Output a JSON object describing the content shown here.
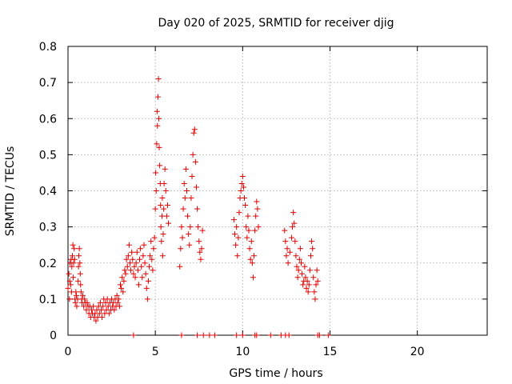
{
  "chart_data": {
    "type": "scatter",
    "title": "Day 020 of 2025, SRMTID for receiver djig",
    "xlabel": "GPS time / hours",
    "ylabel": "SRMTID / TECUs",
    "xlim": [
      0,
      24
    ],
    "ylim": [
      0,
      0.8
    ],
    "x_ticks": [
      0,
      5,
      10,
      15,
      20
    ],
    "x_tick_labels": [
      "0",
      "5",
      "10",
      "15",
      "20"
    ],
    "y_ticks": [
      0,
      0.1,
      0.2,
      0.3,
      0.4,
      0.5,
      0.6,
      0.7,
      0.8
    ],
    "y_tick_labels": [
      "0",
      "0.1",
      "0.2",
      "0.3",
      "0.4",
      "0.5",
      "0.6",
      "0.7",
      "0.8"
    ],
    "grid": true,
    "marker": "+",
    "colors": {
      "series": "#e00000",
      "axis": "#000000",
      "grid": "#a0a0a0"
    },
    "series": [
      {
        "name": "SRMTID",
        "points": [
          [
            0.0,
            0.13
          ],
          [
            0.05,
            0.17
          ],
          [
            0.08,
            0.1
          ],
          [
            0.1,
            0.15
          ],
          [
            0.12,
            0.2
          ],
          [
            0.15,
            0.14
          ],
          [
            0.18,
            0.21
          ],
          [
            0.2,
            0.12
          ],
          [
            0.22,
            0.19
          ],
          [
            0.25,
            0.22
          ],
          [
            0.28,
            0.25
          ],
          [
            0.3,
            0.16
          ],
          [
            0.32,
            0.2
          ],
          [
            0.35,
            0.24
          ],
          [
            0.38,
            0.21
          ],
          [
            0.4,
            0.1
          ],
          [
            0.42,
            0.09
          ],
          [
            0.45,
            0.12
          ],
          [
            0.48,
            0.11
          ],
          [
            0.5,
            0.08
          ],
          [
            0.55,
            0.1
          ],
          [
            0.58,
            0.15
          ],
          [
            0.6,
            0.19
          ],
          [
            0.62,
            0.22
          ],
          [
            0.65,
            0.24
          ],
          [
            0.68,
            0.2
          ],
          [
            0.7,
            0.17
          ],
          [
            0.72,
            0.14
          ],
          [
            0.75,
            0.12
          ],
          [
            0.78,
            0.1
          ],
          [
            0.8,
            0.09
          ],
          [
            0.85,
            0.11
          ],
          [
            0.9,
            0.08
          ],
          [
            0.95,
            0.1
          ],
          [
            1.0,
            0.09
          ],
          [
            1.05,
            0.07
          ],
          [
            1.1,
            0.09
          ],
          [
            1.15,
            0.08
          ],
          [
            1.2,
            0.06
          ],
          [
            1.25,
            0.08
          ],
          [
            1.3,
            0.05
          ],
          [
            1.35,
            0.07
          ],
          [
            1.4,
            0.06
          ],
          [
            1.45,
            0.08
          ],
          [
            1.5,
            0.05
          ],
          [
            1.55,
            0.06
          ],
          [
            1.6,
            0.04
          ],
          [
            1.65,
            0.07
          ],
          [
            1.7,
            0.05
          ],
          [
            1.75,
            0.08
          ],
          [
            1.8,
            0.06
          ],
          [
            1.85,
            0.09
          ],
          [
            1.9,
            0.07
          ],
          [
            1.95,
            0.05
          ],
          [
            2.0,
            0.08
          ],
          [
            2.05,
            0.1
          ],
          [
            2.1,
            0.06
          ],
          [
            2.15,
            0.09
          ],
          [
            2.2,
            0.07
          ],
          [
            2.25,
            0.1
          ],
          [
            2.3,
            0.08
          ],
          [
            2.35,
            0.06
          ],
          [
            2.4,
            0.09
          ],
          [
            2.45,
            0.07
          ],
          [
            2.5,
            0.1
          ],
          [
            2.55,
            0.08
          ],
          [
            2.6,
            0.09
          ],
          [
            2.65,
            0.07
          ],
          [
            2.7,
            0.1
          ],
          [
            2.75,
            0.08
          ],
          [
            2.8,
            0.11
          ],
          [
            2.85,
            0.09
          ],
          [
            2.9,
            0.1
          ],
          [
            2.95,
            0.08
          ],
          [
            3.0,
            0.14
          ],
          [
            3.05,
            0.13
          ],
          [
            3.1,
            0.16
          ],
          [
            3.15,
            0.12
          ],
          [
            3.2,
            0.15
          ],
          [
            3.25,
            0.18
          ],
          [
            3.3,
            0.17
          ],
          [
            3.35,
            0.21
          ],
          [
            3.4,
            0.19
          ],
          [
            3.45,
            0.22
          ],
          [
            3.5,
            0.25
          ],
          [
            3.55,
            0.2
          ],
          [
            3.6,
            0.18
          ],
          [
            3.65,
            0.23
          ],
          [
            3.7,
            0.21
          ],
          [
            3.75,
            0.17
          ],
          [
            3.8,
            0.19
          ],
          [
            3.85,
            0.16
          ],
          [
            3.9,
            0.2
          ],
          [
            3.95,
            0.23
          ],
          [
            4.0,
            0.18
          ],
          [
            4.05,
            0.14
          ],
          [
            4.1,
            0.21
          ],
          [
            4.15,
            0.24
          ],
          [
            4.2,
            0.19
          ],
          [
            4.25,
            0.16
          ],
          [
            4.3,
            0.22
          ],
          [
            4.35,
            0.25
          ],
          [
            4.4,
            0.2
          ],
          [
            4.45,
            0.17
          ],
          [
            4.5,
            0.13
          ],
          [
            4.55,
            0.1
          ],
          [
            4.6,
            0.15
          ],
          [
            4.65,
            0.19
          ],
          [
            4.7,
            0.22
          ],
          [
            4.75,
            0.26
          ],
          [
            4.8,
            0.21
          ],
          [
            4.85,
            0.18
          ],
          [
            4.9,
            0.24
          ],
          [
            4.95,
            0.27
          ],
          [
            5.0,
            0.35
          ],
          [
            5.02,
            0.45
          ],
          [
            5.05,
            0.4
          ],
          [
            5.08,
            0.53
          ],
          [
            5.1,
            0.62
          ],
          [
            5.12,
            0.58
          ],
          [
            5.15,
            0.66
          ],
          [
            5.18,
            0.71
          ],
          [
            5.2,
            0.6
          ],
          [
            5.22,
            0.52
          ],
          [
            5.25,
            0.47
          ],
          [
            5.28,
            0.42
          ],
          [
            5.3,
            0.36
          ],
          [
            5.32,
            0.3
          ],
          [
            5.35,
            0.26
          ],
          [
            5.38,
            0.33
          ],
          [
            5.4,
            0.38
          ],
          [
            5.42,
            0.22
          ],
          [
            5.45,
            0.28
          ],
          [
            5.48,
            0.35
          ],
          [
            5.5,
            0.42
          ],
          [
            5.55,
            0.46
          ],
          [
            5.6,
            0.4
          ],
          [
            5.65,
            0.33
          ],
          [
            5.7,
            0.36
          ],
          [
            5.75,
            0.31
          ],
          [
            6.4,
            0.19
          ],
          [
            6.45,
            0.24
          ],
          [
            6.5,
            0.3
          ],
          [
            6.55,
            0.27
          ],
          [
            6.6,
            0.35
          ],
          [
            6.65,
            0.42
          ],
          [
            6.7,
            0.38
          ],
          [
            6.75,
            0.46
          ],
          [
            6.8,
            0.4
          ],
          [
            6.85,
            0.33
          ],
          [
            6.9,
            0.28
          ],
          [
            6.95,
            0.25
          ],
          [
            7.0,
            0.3
          ],
          [
            7.05,
            0.38
          ],
          [
            7.1,
            0.44
          ],
          [
            7.15,
            0.5
          ],
          [
            7.2,
            0.56
          ],
          [
            7.25,
            0.57
          ],
          [
            7.3,
            0.48
          ],
          [
            7.35,
            0.41
          ],
          [
            7.4,
            0.35
          ],
          [
            7.45,
            0.3
          ],
          [
            7.5,
            0.26
          ],
          [
            7.55,
            0.23
          ],
          [
            7.6,
            0.21
          ],
          [
            7.65,
            0.24
          ],
          [
            7.7,
            0.29
          ],
          [
            9.5,
            0.32
          ],
          [
            9.55,
            0.28
          ],
          [
            9.6,
            0.25
          ],
          [
            9.65,
            0.3
          ],
          [
            9.7,
            0.22
          ],
          [
            9.75,
            0.27
          ],
          [
            9.8,
            0.34
          ],
          [
            9.85,
            0.38
          ],
          [
            9.9,
            0.4
          ],
          [
            9.95,
            0.42
          ],
          [
            10.0,
            0.44
          ],
          [
            10.05,
            0.41
          ],
          [
            10.1,
            0.38
          ],
          [
            10.15,
            0.36
          ],
          [
            10.2,
            0.3
          ],
          [
            10.25,
            0.27
          ],
          [
            10.3,
            0.33
          ],
          [
            10.35,
            0.29
          ],
          [
            10.4,
            0.24
          ],
          [
            10.45,
            0.21
          ],
          [
            10.5,
            0.26
          ],
          [
            10.55,
            0.2
          ],
          [
            10.6,
            0.16
          ],
          [
            10.65,
            0.22
          ],
          [
            10.7,
            0.29
          ],
          [
            10.75,
            0.33
          ],
          [
            10.8,
            0.37
          ],
          [
            10.85,
            0.35
          ],
          [
            10.9,
            0.3
          ],
          [
            12.4,
            0.29
          ],
          [
            12.45,
            0.26
          ],
          [
            12.5,
            0.22
          ],
          [
            12.55,
            0.24
          ],
          [
            12.6,
            0.2
          ],
          [
            12.7,
            0.23
          ],
          [
            12.8,
            0.27
          ],
          [
            12.85,
            0.3
          ],
          [
            12.9,
            0.34
          ],
          [
            12.95,
            0.31
          ],
          [
            13.0,
            0.26
          ],
          [
            13.05,
            0.22
          ],
          [
            13.1,
            0.19
          ],
          [
            13.15,
            0.16
          ],
          [
            13.2,
            0.18
          ],
          [
            13.25,
            0.21
          ],
          [
            13.3,
            0.24
          ],
          [
            13.35,
            0.2
          ],
          [
            13.4,
            0.17
          ],
          [
            13.45,
            0.14
          ],
          [
            13.5,
            0.15
          ],
          [
            13.55,
            0.19
          ],
          [
            13.6,
            0.16
          ],
          [
            13.65,
            0.13
          ],
          [
            13.7,
            0.15
          ],
          [
            13.75,
            0.12
          ],
          [
            13.8,
            0.14
          ],
          [
            13.85,
            0.18
          ],
          [
            13.9,
            0.22
          ],
          [
            13.95,
            0.26
          ],
          [
            14.0,
            0.24
          ],
          [
            14.05,
            0.16
          ],
          [
            14.1,
            0.12
          ],
          [
            14.15,
            0.1
          ],
          [
            14.2,
            0.14
          ],
          [
            14.25,
            0.18
          ],
          [
            14.3,
            0.15
          ],
          [
            3.75,
            0.0
          ],
          [
            6.5,
            0.0
          ],
          [
            7.4,
            0.0
          ],
          [
            7.75,
            0.0
          ],
          [
            8.1,
            0.0
          ],
          [
            8.4,
            0.0
          ],
          [
            9.65,
            0.0
          ],
          [
            10.0,
            0.0
          ],
          [
            10.7,
            0.0
          ],
          [
            10.8,
            0.0
          ],
          [
            11.6,
            0.0
          ],
          [
            12.2,
            0.0
          ],
          [
            12.45,
            0.0
          ],
          [
            12.65,
            0.0
          ],
          [
            14.3,
            0.0
          ],
          [
            14.4,
            0.0
          ],
          [
            14.9,
            0.0
          ]
        ]
      }
    ]
  }
}
